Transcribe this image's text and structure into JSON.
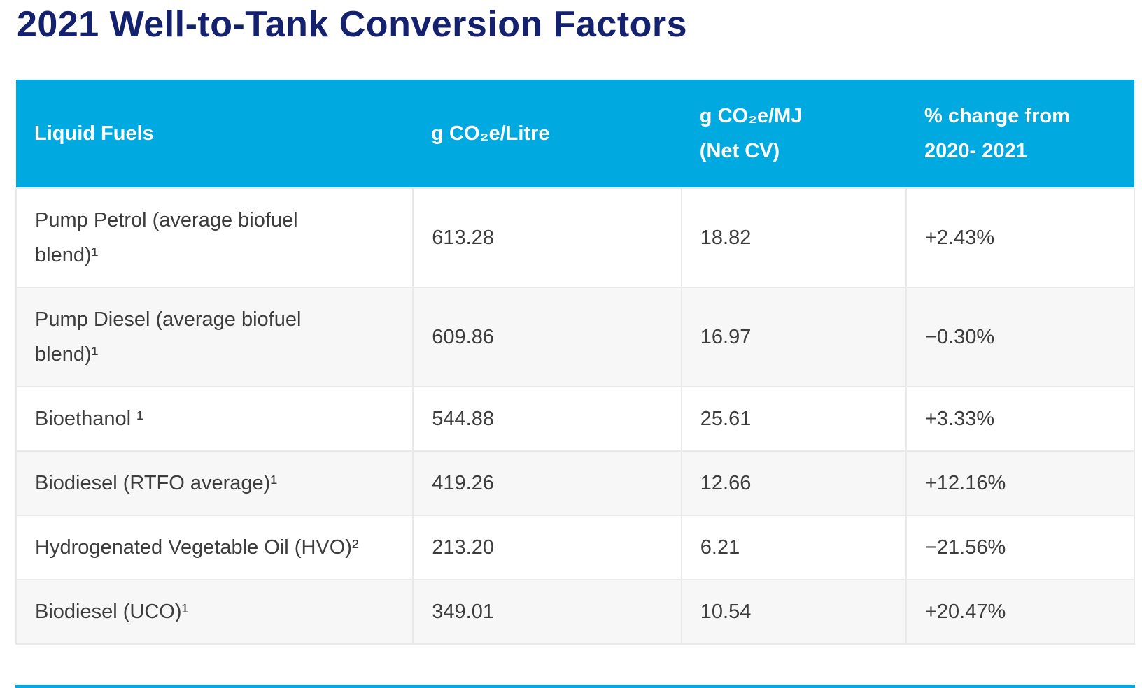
{
  "title": "2021 Well-to-Tank Conversion Factors",
  "theme": {
    "header_bg": "#00a9e0",
    "header_text": "#ffffff",
    "title_color": "#14216e",
    "row_alt_bg": "#f7f7f7",
    "border_color": "#e9e9e9",
    "body_text": "#3d3d3d"
  },
  "table": {
    "columns": [
      {
        "label": "Liquid Fuels"
      },
      {
        "label": "g CO₂e/Litre"
      },
      {
        "label": "g CO₂e/MJ\n(Net CV)"
      },
      {
        "label": "% change from\n2020- 2021"
      }
    ],
    "rows": [
      {
        "fuel": "Pump Petrol (average biofuel blend)¹",
        "g_per_litre": "613.28",
        "g_per_mj": "18.82",
        "pct_change": "+2.43%"
      },
      {
        "fuel": "Pump Diesel (average biofuel blend)¹",
        "g_per_litre": "609.86",
        "g_per_mj": "16.97",
        "pct_change": "−0.30%"
      },
      {
        "fuel": "Bioethanol ¹",
        "g_per_litre": "544.88",
        "g_per_mj": "25.61",
        "pct_change": "+3.33%"
      },
      {
        "fuel": "Biodiesel (RTFO average)¹",
        "g_per_litre": "419.26",
        "g_per_mj": "12.66",
        "pct_change": "+12.16%"
      },
      {
        "fuel": "Hydrogenated Vegetable Oil (HVO)²",
        "g_per_litre": "213.20",
        "g_per_mj": "6.21",
        "pct_change": "−21.56%"
      },
      {
        "fuel": "Biodiesel (UCO)¹",
        "g_per_litre": "349.01",
        "g_per_mj": "10.54",
        "pct_change": "+20.47%"
      }
    ]
  },
  "chart_data": {
    "type": "table",
    "title": "2021 Well-to-Tank Conversion Factors",
    "columns": [
      "Liquid Fuels",
      "g CO2e/Litre",
      "g CO2e/MJ (Net CV)",
      "% change from 2020- 2021"
    ],
    "rows": [
      [
        "Pump Petrol (average biofuel blend)¹",
        613.28,
        18.82,
        "+2.43%"
      ],
      [
        "Pump Diesel (average biofuel blend)¹",
        609.86,
        16.97,
        "−0.30%"
      ],
      [
        "Bioethanol ¹",
        544.88,
        25.61,
        "+3.33%"
      ],
      [
        "Biodiesel (RTFO average)¹",
        419.26,
        12.66,
        "+12.16%"
      ],
      [
        "Hydrogenated Vegetable Oil (HVO)²",
        213.2,
        6.21,
        "−21.56%"
      ],
      [
        "Biodiesel (UCO)¹",
        349.01,
        10.54,
        "+20.47%"
      ]
    ]
  }
}
